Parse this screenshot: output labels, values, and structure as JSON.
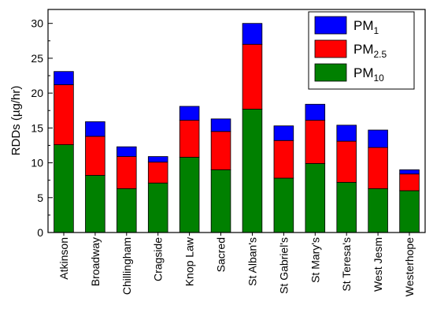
{
  "chart_data": {
    "type": "bar",
    "stacked": true,
    "ylabel": "RDDs (µg/hr)",
    "ylim": [
      0,
      32
    ],
    "yticks": [
      0,
      5,
      10,
      15,
      20,
      25,
      30
    ],
    "grid": false,
    "legend_position": "top-right",
    "categories": [
      "Atkinson",
      "Broadway",
      "Chillingham",
      "Cragside",
      "Knop Law",
      "Sacred",
      "St Alban's",
      "St Gabriel's",
      "St Mary's",
      "St Teresa's",
      "West Jesm",
      "Westerhope"
    ],
    "series": [
      {
        "name": "PM10",
        "name_main": "PM",
        "name_sub": "10",
        "color": "#008000",
        "values": [
          12.6,
          8.2,
          6.3,
          7.1,
          10.8,
          9.0,
          17.7,
          7.8,
          9.9,
          7.2,
          6.3,
          6.0
        ]
      },
      {
        "name": "PM2.5",
        "name_main": "PM",
        "name_sub": "2.5",
        "color": "#ff0000",
        "values": [
          8.6,
          5.6,
          4.6,
          3.0,
          5.3,
          5.5,
          9.3,
          5.4,
          6.2,
          5.9,
          5.9,
          2.4
        ]
      },
      {
        "name": "PM1",
        "name_main": "PM",
        "name_sub": "1",
        "color": "#0000ff",
        "values": [
          1.9,
          2.1,
          1.4,
          0.8,
          2.0,
          1.8,
          3.0,
          2.1,
          2.3,
          2.3,
          2.5,
          0.6
        ]
      }
    ]
  }
}
